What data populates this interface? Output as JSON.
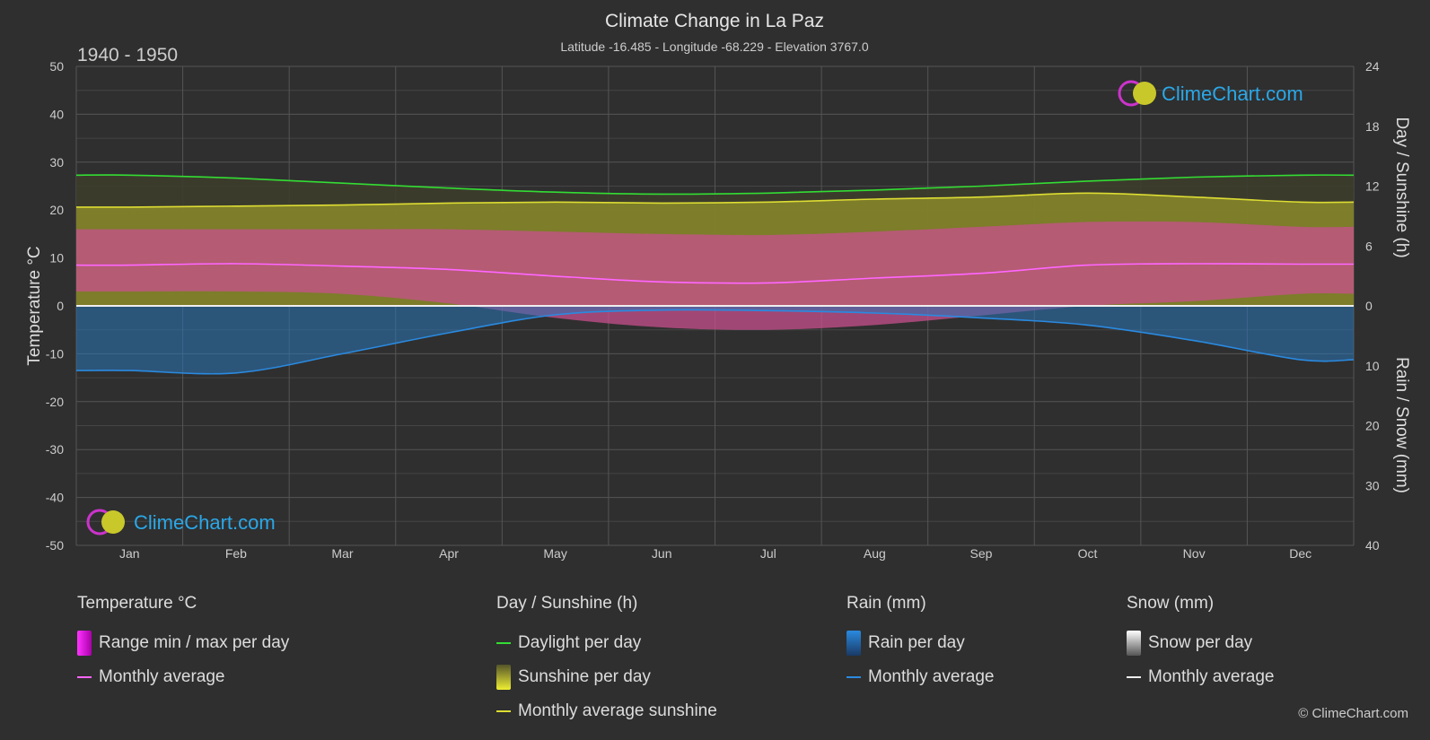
{
  "header": {
    "title": "Climate Change in La Paz",
    "subtitle": "Latitude -16.485 - Longitude -68.229 - Elevation 3767.0",
    "period": "1940 - 1950"
  },
  "logo": {
    "text": "ClimeChart.com"
  },
  "copyright": "© ClimeChart.com",
  "colors": {
    "background": "#2f2f2f",
    "daylight": "#33dd33",
    "sunshine_avg": "#dddd33",
    "sunshine_fill": "#8a8a2a",
    "temp_range": "#c8508e",
    "temp_avg": "#ff66ff",
    "rain": "#2a74b8",
    "rain_avg": "#2a8ae0",
    "snow": "#bbbbbb"
  },
  "legend": {
    "temperature": {
      "title": "Temperature °C",
      "range_label": "Range min / max per day",
      "avg_label": "Monthly average"
    },
    "sunshine": {
      "title": "Day / Sunshine (h)",
      "daylight_label": "Daylight per day",
      "sunshine_label": "Sunshine per day",
      "avg_label": "Monthly average sunshine"
    },
    "rain": {
      "title": "Rain (mm)",
      "per_day_label": "Rain per day",
      "avg_label": "Monthly average"
    },
    "snow": {
      "title": "Snow (mm)",
      "per_day_label": "Snow per day",
      "avg_label": "Monthly average"
    }
  },
  "chart_data": {
    "type": "line",
    "categories": [
      "Jan",
      "Feb",
      "Mar",
      "Apr",
      "May",
      "Jun",
      "Jul",
      "Aug",
      "Sep",
      "Oct",
      "Nov",
      "Dec"
    ],
    "y_left": {
      "label": "Temperature °C",
      "range": [
        -50,
        50
      ],
      "ticks": [
        50,
        40,
        30,
        20,
        10,
        0,
        -10,
        -20,
        -30,
        -40,
        -50
      ]
    },
    "y_right_top": {
      "label": "Day / Sunshine (h)",
      "range": [
        0,
        24
      ],
      "ticks": [
        24,
        18,
        12,
        6,
        0
      ]
    },
    "y_right_bottom": {
      "label": "Rain / Snow (mm)",
      "range": [
        0,
        40
      ],
      "ticks": [
        0,
        10,
        20,
        30,
        40
      ]
    },
    "series": [
      {
        "name": "Daylight per day",
        "unit": "h",
        "values": [
          13.1,
          12.8,
          12.3,
          11.8,
          11.4,
          11.2,
          11.3,
          11.6,
          12.0,
          12.5,
          12.9,
          13.1
        ]
      },
      {
        "name": "Monthly average sunshine",
        "unit": "h",
        "values": [
          9.9,
          10.0,
          10.1,
          10.3,
          10.4,
          10.3,
          10.4,
          10.7,
          10.9,
          11.3,
          10.9,
          10.4
        ]
      },
      {
        "name": "Temperature monthly average",
        "unit": "°C",
        "values": [
          8.5,
          8.8,
          8.3,
          7.6,
          6.2,
          5.0,
          4.8,
          5.8,
          6.8,
          8.5,
          8.8,
          8.7
        ]
      },
      {
        "name": "Temperature max per day",
        "unit": "°C",
        "values": [
          16.0,
          16.0,
          16.0,
          16.0,
          15.5,
          15.0,
          14.8,
          15.5,
          16.5,
          17.5,
          17.5,
          16.5
        ]
      },
      {
        "name": "Temperature min per day",
        "unit": "°C",
        "values": [
          3.0,
          3.0,
          2.5,
          0.5,
          -2.5,
          -4.5,
          -5.0,
          -4.0,
          -2.0,
          0.0,
          1.0,
          2.5
        ]
      },
      {
        "name": "Rain monthly average",
        "unit": "mm",
        "values": [
          10.8,
          11.2,
          8.0,
          4.5,
          1.5,
          0.7,
          0.8,
          1.2,
          2.0,
          3.2,
          5.8,
          9.0
        ]
      },
      {
        "name": "Snow monthly average",
        "unit": "mm",
        "values": [
          0,
          0,
          0,
          0,
          0,
          0,
          0,
          0,
          0,
          0,
          0,
          0
        ]
      }
    ]
  }
}
